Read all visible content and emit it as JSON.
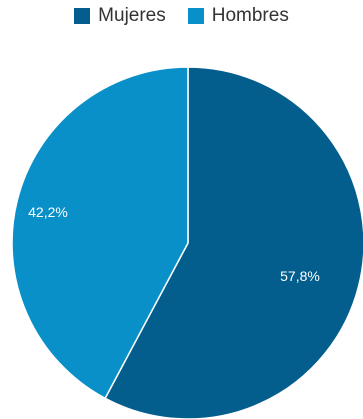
{
  "chart_data": {
    "type": "pie",
    "legend_position": "top",
    "slices": [
      {
        "name": "Mujeres",
        "value": 57.8,
        "label": "57,8%",
        "color": "#035E8D"
      },
      {
        "name": "Hombres",
        "value": 42.2,
        "label": "42,2%",
        "color": "#0A90C9"
      }
    ]
  }
}
